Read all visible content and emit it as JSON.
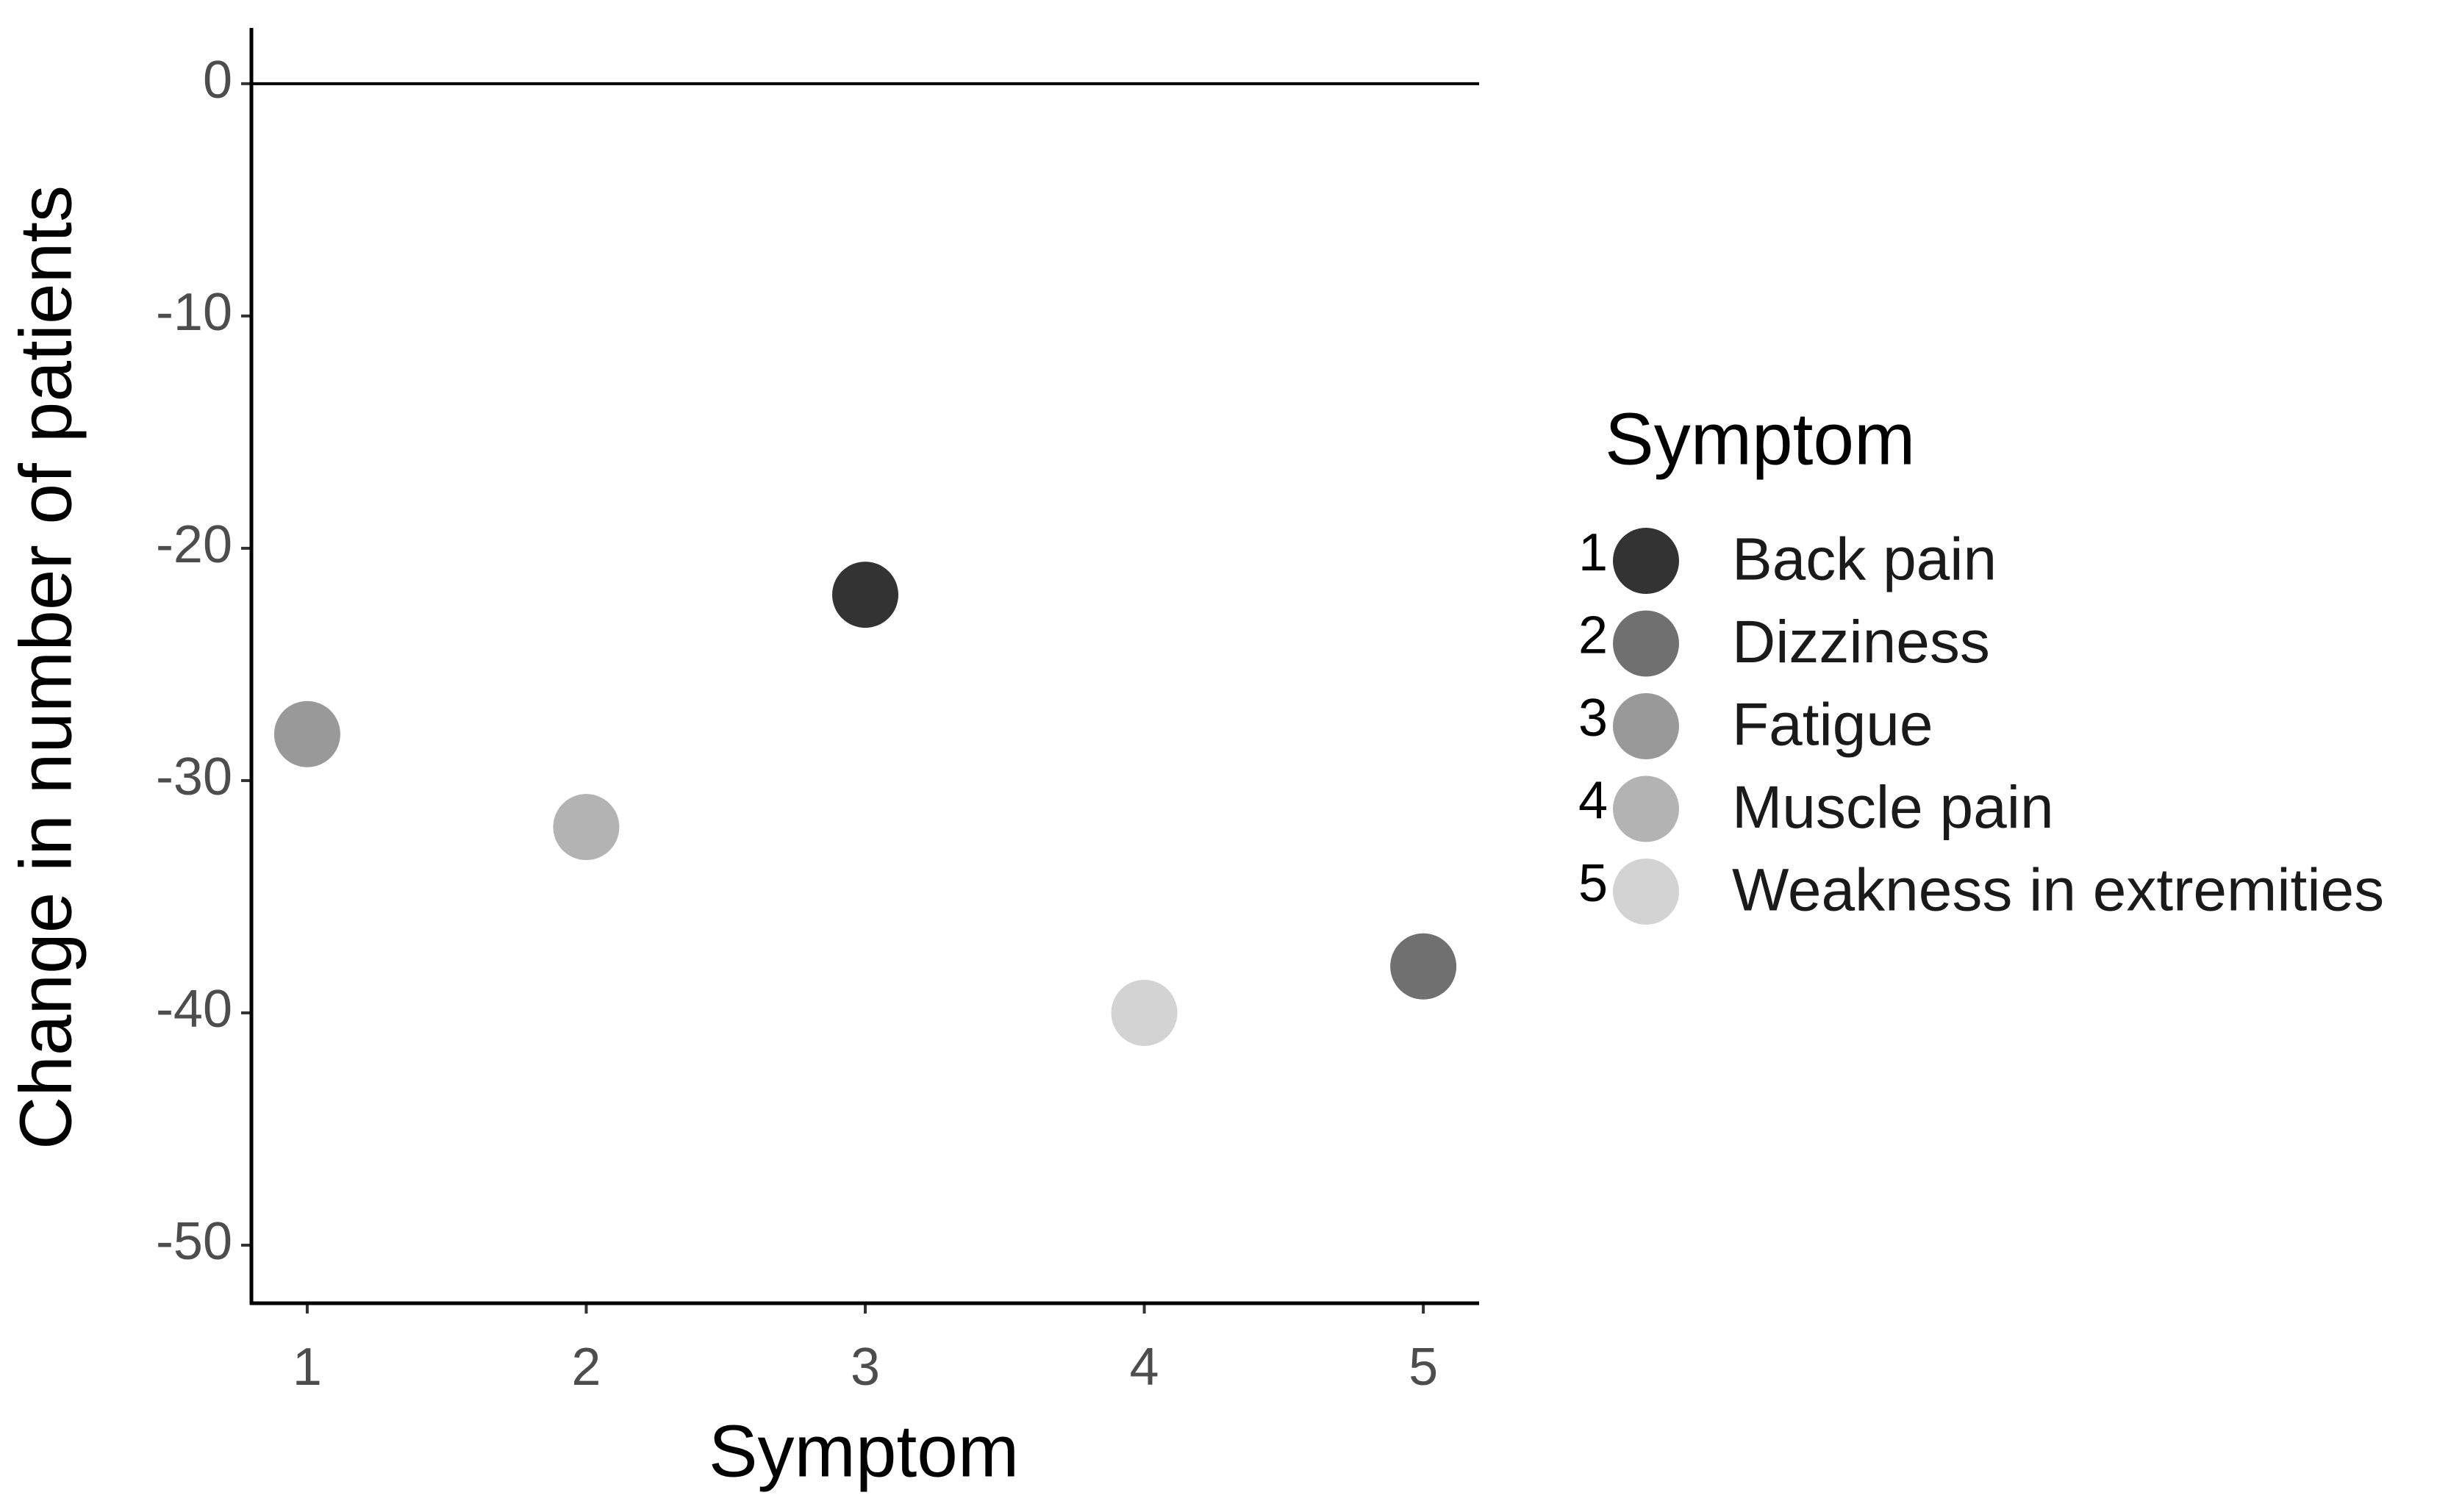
{
  "chart_data": {
    "type": "scatter",
    "x_label": "Symptom",
    "y_label": "Change in number of patients",
    "legend_title": "Symptom",
    "legend_position": "right",
    "xlim": [
      0.8,
      5.2
    ],
    "ylim": [
      -52.5,
      2.4
    ],
    "xticks": [
      1,
      2,
      3,
      4,
      5
    ],
    "yticks": [
      0,
      -10,
      -20,
      -30,
      -40,
      -50
    ],
    "hline": 0,
    "grid": false,
    "series": [
      {
        "name": "Back pain",
        "number": 1,
        "color": "#333333",
        "x": [
          3
        ],
        "values": [
          -22
        ]
      },
      {
        "name": "Dizziness",
        "number": 2,
        "color": "#707070",
        "x": [
          5
        ],
        "values": [
          -38
        ]
      },
      {
        "name": "Fatigue",
        "number": 3,
        "color": "#999999",
        "x": [
          1
        ],
        "values": [
          -28
        ]
      },
      {
        "name": "Muscle pain",
        "number": 4,
        "color": "#b3b3b3",
        "x": [
          2
        ],
        "values": [
          -32
        ]
      },
      {
        "name": "Weakness in extremities",
        "number": 5,
        "color": "#d3d3d3",
        "x": [
          4
        ],
        "values": [
          -40
        ]
      }
    ]
  }
}
